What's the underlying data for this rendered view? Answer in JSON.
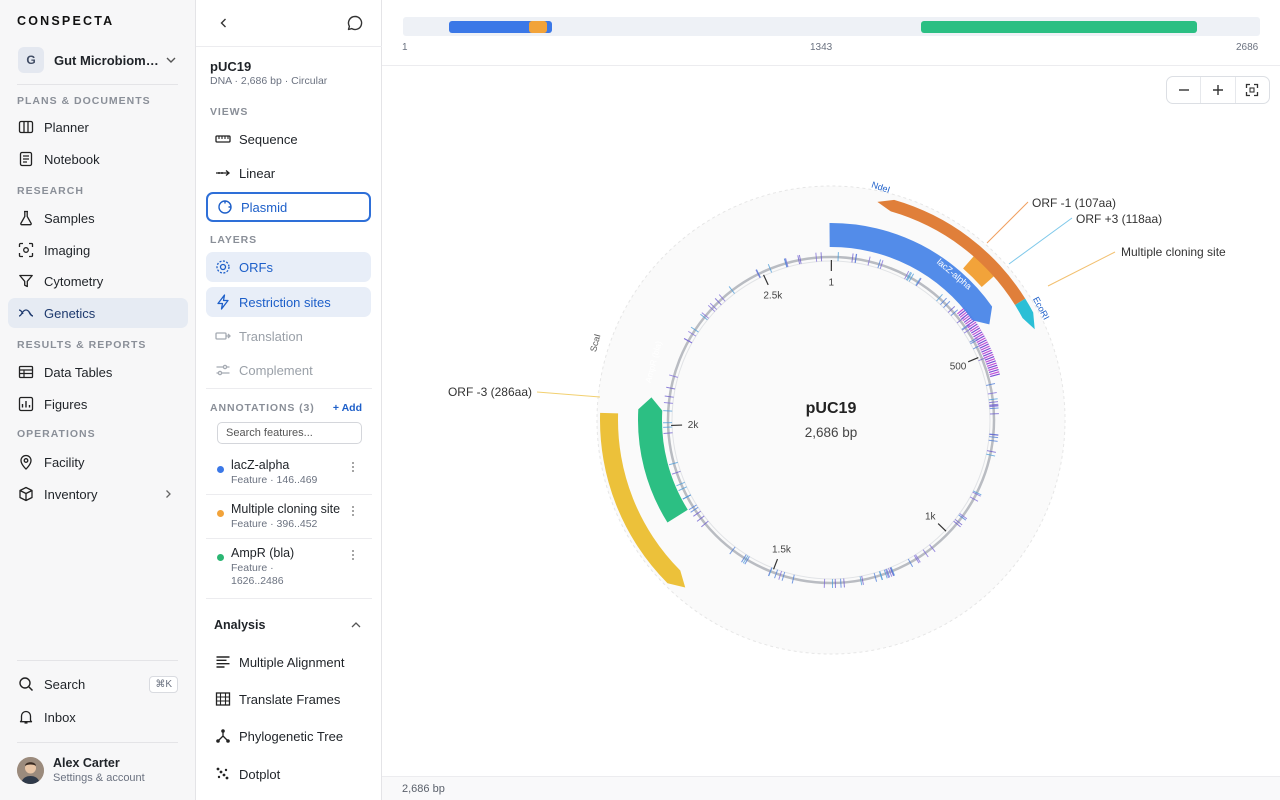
{
  "app": {
    "brand": "CONSPECTA"
  },
  "workspace": {
    "initial": "G",
    "name": "Gut Microbiome Study"
  },
  "nav": {
    "sections": [
      {
        "label": "PLANS & DOCUMENTS"
      },
      {
        "label": "RESEARCH"
      },
      {
        "label": "RESULTS & REPORTS"
      },
      {
        "label": "OPERATIONS"
      }
    ],
    "items": [
      {
        "label": "Planner",
        "icon": "columns-icon"
      },
      {
        "label": "Notebook",
        "icon": "notebook-icon"
      },
      {
        "label": "Samples",
        "icon": "flask-icon"
      },
      {
        "label": "Imaging",
        "icon": "image-scan-icon"
      },
      {
        "label": "Cytometry",
        "icon": "funnel-icon"
      },
      {
        "label": "Genetics",
        "icon": "dna-icon",
        "active": true
      },
      {
        "label": "Data Tables",
        "icon": "table-icon"
      },
      {
        "label": "Figures",
        "icon": "chart-icon"
      },
      {
        "label": "Facility",
        "icon": "pin-icon"
      },
      {
        "label": "Inventory",
        "icon": "box-icon"
      }
    ],
    "search": {
      "label": "Search",
      "shortcut": "⌘K"
    },
    "inbox": {
      "label": "Inbox"
    }
  },
  "user": {
    "name": "Alex Carter",
    "subtitle": "Settings & account"
  },
  "sequence": {
    "name": "pUC19",
    "meta": "DNA · 2,686 bp · Circular"
  },
  "panel": {
    "views_label": "VIEWS",
    "views": [
      {
        "label": "Sequence"
      },
      {
        "label": "Linear"
      },
      {
        "label": "Plasmid",
        "selected": true
      }
    ],
    "layers_label": "LAYERS",
    "layers": [
      {
        "label": "ORFs",
        "on": true
      },
      {
        "label": "Restriction sites",
        "on": true
      },
      {
        "label": "Translation",
        "on": false
      },
      {
        "label": "Complement",
        "on": false
      }
    ],
    "annotations_label": "ANNOTATIONS (3)",
    "add_label": "+ Add",
    "search_placeholder": "Search features...",
    "annotations": [
      {
        "name": "lacZ-alpha",
        "meta": "Feature · 146..469",
        "color": "#3b78e7"
      },
      {
        "name": "Multiple cloning site",
        "meta": "Feature · 396..452",
        "color": "#f2a33a"
      },
      {
        "name": "AmpR (bla)",
        "meta": "Feature · 1626..2486",
        "color": "#2bb673"
      }
    ],
    "analysis_label": "Analysis",
    "analysis": [
      {
        "label": "Multiple Alignment"
      },
      {
        "label": "Translate Frames"
      },
      {
        "label": "Phylogenetic Tree"
      },
      {
        "label": "Dotplot"
      }
    ]
  },
  "overview": {
    "ticks": [
      "1",
      "1343",
      "2686"
    ]
  },
  "plasmid": {
    "center_name": "pUC19",
    "center_len": "2,686 bp",
    "total_bp": 2686,
    "tick_labels": [
      {
        "pos": 1,
        "text": "1"
      },
      {
        "pos": 500,
        "text": "500"
      },
      {
        "pos": 1000,
        "text": "1k"
      },
      {
        "pos": 1500,
        "text": "1.5k"
      },
      {
        "pos": 2000,
        "text": "2k"
      },
      {
        "pos": 2500,
        "text": "2.5k"
      }
    ],
    "features": [
      {
        "name": "lacZ-alpha",
        "color": "#4a86e8"
      },
      {
        "name": "AmpR (bla)",
        "color": "#2cbf83"
      },
      {
        "name": "ScaI",
        "color": "#ecc13a"
      },
      {
        "name": "NdeI",
        "color": "#e07f3a"
      },
      {
        "name": "EcoRI",
        "color": "#2bbfd6"
      }
    ],
    "callouts": [
      {
        "text": "ORF -1 (107aa)"
      },
      {
        "text": "ORF +3 (118aa)"
      },
      {
        "text": "Multiple cloning site"
      },
      {
        "text": "ORF -3 (286aa)"
      }
    ]
  },
  "status": {
    "text": "2,686 bp"
  }
}
